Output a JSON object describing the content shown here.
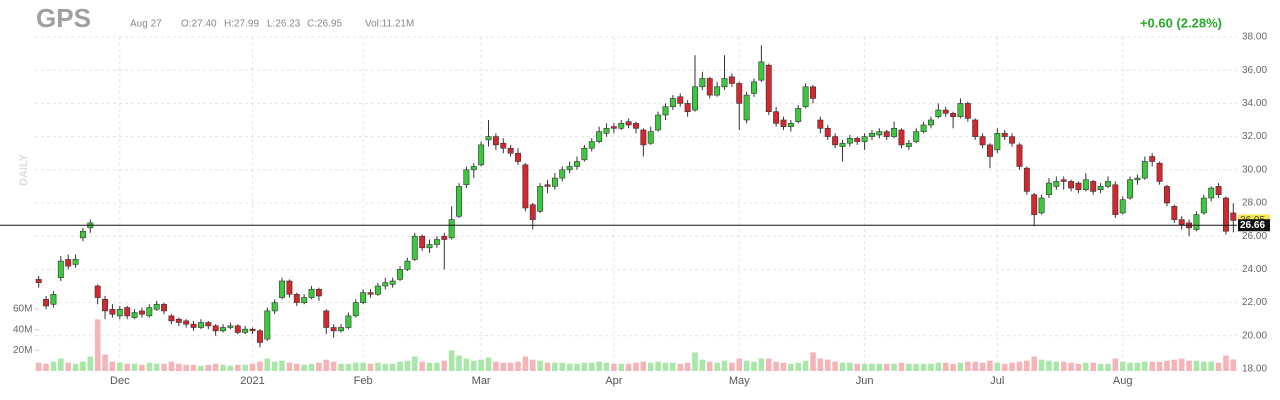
{
  "chart_data": {
    "type": "candlestick",
    "ticker": "GPS",
    "date": "Aug 27",
    "open_label": "O:27.40",
    "high_label": "H:27.99",
    "low_label": "L:26.23",
    "close_label": "C:26.95",
    "volume_label": "Vol:11.21M",
    "change": "+0.60 (2.28%)",
    "period": "DAILY",
    "up_color": "#3cc83c",
    "down_color": "#d3282f",
    "volume_up_color": "#a9e6a9",
    "volume_down_color": "#f5b5b8",
    "ylim": [
      18,
      38
    ],
    "yticks": [
      {
        "value": 18,
        "label": "18.00"
      },
      {
        "value": 20,
        "label": "20.00"
      },
      {
        "value": 22,
        "label": "22.00"
      },
      {
        "value": 24,
        "label": "24.00"
      },
      {
        "value": 26,
        "label": "26.00"
      },
      {
        "value": 28,
        "label": "28.00"
      },
      {
        "value": 30,
        "label": "30.00"
      },
      {
        "value": 32,
        "label": "32.00"
      },
      {
        "value": 34,
        "label": "34.00"
      },
      {
        "value": 36,
        "label": "36.00"
      },
      {
        "value": 38,
        "label": "38.00"
      }
    ],
    "vlim": [
      0,
      60
    ],
    "vticks": [
      {
        "value": 20,
        "label": "20M"
      },
      {
        "value": 40,
        "label": "40M"
      },
      {
        "value": 60,
        "label": "60M"
      }
    ],
    "xticks": [
      {
        "value": 11,
        "label": "Dec"
      },
      {
        "value": 29,
        "label": "2021"
      },
      {
        "value": 44,
        "label": "Feb"
      },
      {
        "value": 60,
        "label": "Mar"
      },
      {
        "value": 78,
        "label": "Apr"
      },
      {
        "value": 95,
        "label": "May"
      },
      {
        "value": 112,
        "label": "Jun"
      },
      {
        "value": 130,
        "label": "Jul"
      },
      {
        "value": 147,
        "label": "Aug"
      }
    ],
    "price_line": {
      "value": 26.66,
      "label": "26.66"
    },
    "last_price": {
      "value": 26.95,
      "label": "26.95"
    },
    "grid": true,
    "candles": [
      [
        23.4,
        23.6,
        22.9,
        23.2
      ],
      [
        22.2,
        22.4,
        21.6,
        21.8
      ],
      [
        21.9,
        22.7,
        21.7,
        22.5
      ],
      [
        23.5,
        24.8,
        23.3,
        24.5
      ],
      [
        24.6,
        24.9,
        24.0,
        24.2
      ],
      [
        24.3,
        24.9,
        24.1,
        24.6
      ],
      [
        25.9,
        26.5,
        25.7,
        26.3
      ],
      [
        26.5,
        27.0,
        26.2,
        26.8
      ],
      [
        23.0,
        23.1,
        21.9,
        22.3
      ],
      [
        22.2,
        22.4,
        21.0,
        21.5
      ],
      [
        21.6,
        21.9,
        21.1,
        21.3
      ],
      [
        21.2,
        21.8,
        21.0,
        21.6
      ],
      [
        21.7,
        21.8,
        21.0,
        21.2
      ],
      [
        21.1,
        21.6,
        21.0,
        21.4
      ],
      [
        21.5,
        21.7,
        21.1,
        21.3
      ],
      [
        21.2,
        21.9,
        21.1,
        21.7
      ],
      [
        21.6,
        22.1,
        21.5,
        21.9
      ],
      [
        21.9,
        22.0,
        21.3,
        21.5
      ],
      [
        21.2,
        21.3,
        20.7,
        20.9
      ],
      [
        21.0,
        21.1,
        20.6,
        20.8
      ],
      [
        20.9,
        21.0,
        20.5,
        20.7
      ],
      [
        20.7,
        20.9,
        20.3,
        20.5
      ],
      [
        20.5,
        21.0,
        20.4,
        20.8
      ],
      [
        20.8,
        20.9,
        20.4,
        20.6
      ],
      [
        20.6,
        20.7,
        20.0,
        20.3
      ],
      [
        20.3,
        20.7,
        20.2,
        20.5
      ],
      [
        20.5,
        20.8,
        20.4,
        20.6
      ],
      [
        20.6,
        20.7,
        20.1,
        20.2
      ],
      [
        20.2,
        20.6,
        20.1,
        20.4
      ],
      [
        20.4,
        20.5,
        20.1,
        20.3
      ],
      [
        20.3,
        20.4,
        19.3,
        19.6
      ],
      [
        19.8,
        21.7,
        19.7,
        21.5
      ],
      [
        21.5,
        22.2,
        21.3,
        22.0
      ],
      [
        22.3,
        23.5,
        22.2,
        23.3
      ],
      [
        23.3,
        23.4,
        22.3,
        22.5
      ],
      [
        22.5,
        22.6,
        21.8,
        22.0
      ],
      [
        22.0,
        22.5,
        21.9,
        22.3
      ],
      [
        22.3,
        23.0,
        22.2,
        22.8
      ],
      [
        22.8,
        22.9,
        22.1,
        22.4
      ],
      [
        21.5,
        21.6,
        20.1,
        20.5
      ],
      [
        20.5,
        20.7,
        19.9,
        20.3
      ],
      [
        20.3,
        20.7,
        20.2,
        20.5
      ],
      [
        20.5,
        21.4,
        20.4,
        21.2
      ],
      [
        21.2,
        22.2,
        21.1,
        22.0
      ],
      [
        22.0,
        22.8,
        21.9,
        22.6
      ],
      [
        22.6,
        22.8,
        22.3,
        22.5
      ],
      [
        22.5,
        23.2,
        22.4,
        23.0
      ],
      [
        23.0,
        23.5,
        22.8,
        23.2
      ],
      [
        23.1,
        23.5,
        22.9,
        23.3
      ],
      [
        23.4,
        24.2,
        23.3,
        24.0
      ],
      [
        24.0,
        24.7,
        23.9,
        24.5
      ],
      [
        24.6,
        26.2,
        24.5,
        26.0
      ],
      [
        26.0,
        26.1,
        25.1,
        25.3
      ],
      [
        25.3,
        25.8,
        25.0,
        25.5
      ],
      [
        25.5,
        26.0,
        25.3,
        25.8
      ],
      [
        26.0,
        26.2,
        24.0,
        25.8
      ],
      [
        25.9,
        27.8,
        25.8,
        27.0
      ],
      [
        27.2,
        29.2,
        27.1,
        29.0
      ],
      [
        29.1,
        30.2,
        28.9,
        30.0
      ],
      [
        30.0,
        30.4,
        29.5,
        30.2
      ],
      [
        30.3,
        31.7,
        30.2,
        31.5
      ],
      [
        31.8,
        33.0,
        31.4,
        32.0
      ],
      [
        32.0,
        32.2,
        31.2,
        31.5
      ],
      [
        31.6,
        31.9,
        31.0,
        31.3
      ],
      [
        31.3,
        31.5,
        30.8,
        31.0
      ],
      [
        31.0,
        31.3,
        30.3,
        30.5
      ],
      [
        30.3,
        30.4,
        27.5,
        27.7
      ],
      [
        27.9,
        28.0,
        26.4,
        27.0
      ],
      [
        27.5,
        29.2,
        27.4,
        29.0
      ],
      [
        29.1,
        29.4,
        28.6,
        29.0
      ],
      [
        29.0,
        29.8,
        28.8,
        29.5
      ],
      [
        29.5,
        30.2,
        29.3,
        30.0
      ],
      [
        30.0,
        30.5,
        29.8,
        30.2
      ],
      [
        30.2,
        30.8,
        30.0,
        30.5
      ],
      [
        30.6,
        31.5,
        30.5,
        31.3
      ],
      [
        31.3,
        31.9,
        31.1,
        31.7
      ],
      [
        31.7,
        32.6,
        31.6,
        32.3
      ],
      [
        32.2,
        32.8,
        32.0,
        32.5
      ],
      [
        32.6,
        32.8,
        32.2,
        32.5
      ],
      [
        32.5,
        33.0,
        32.4,
        32.8
      ],
      [
        32.9,
        33.1,
        32.5,
        32.7
      ],
      [
        32.8,
        32.9,
        32.2,
        32.5
      ],
      [
        32.4,
        32.5,
        30.8,
        31.5
      ],
      [
        31.6,
        32.6,
        31.5,
        32.3
      ],
      [
        32.4,
        33.5,
        32.3,
        33.3
      ],
      [
        33.3,
        34.0,
        33.0,
        33.8
      ],
      [
        33.8,
        34.5,
        33.6,
        34.3
      ],
      [
        34.4,
        34.6,
        33.8,
        34.0
      ],
      [
        34.0,
        34.2,
        33.2,
        33.5
      ],
      [
        33.6,
        36.9,
        33.5,
        35.0
      ],
      [
        35.0,
        35.9,
        34.8,
        35.5
      ],
      [
        35.5,
        35.6,
        34.3,
        34.5
      ],
      [
        34.5,
        35.3,
        34.4,
        35.0
      ],
      [
        35.0,
        36.9,
        34.8,
        35.5
      ],
      [
        35.6,
        35.8,
        35.0,
        35.2
      ],
      [
        35.2,
        35.3,
        32.4,
        34.0
      ],
      [
        33.0,
        34.7,
        32.8,
        34.5
      ],
      [
        34.6,
        35.5,
        34.4,
        35.3
      ],
      [
        35.4,
        37.5,
        35.3,
        36.5
      ],
      [
        36.3,
        36.4,
        33.3,
        33.5
      ],
      [
        33.5,
        33.8,
        32.6,
        32.8
      ],
      [
        33.0,
        33.2,
        32.4,
        32.6
      ],
      [
        32.6,
        33.0,
        32.3,
        32.8
      ],
      [
        32.9,
        33.9,
        32.8,
        33.7
      ],
      [
        33.8,
        35.2,
        33.7,
        35.0
      ],
      [
        35.0,
        35.1,
        34.0,
        34.3
      ],
      [
        33.0,
        33.2,
        32.2,
        32.5
      ],
      [
        32.5,
        32.7,
        31.8,
        32.0
      ],
      [
        32.0,
        32.2,
        31.3,
        31.5
      ],
      [
        31.4,
        31.8,
        30.5,
        31.6
      ],
      [
        31.6,
        32.1,
        31.4,
        31.9
      ],
      [
        31.9,
        32.0,
        31.5,
        31.7
      ],
      [
        31.7,
        32.2,
        31.2,
        32.0
      ],
      [
        32.0,
        32.4,
        31.8,
        32.2
      ],
      [
        32.1,
        32.5,
        31.9,
        32.3
      ],
      [
        32.3,
        32.4,
        31.8,
        32.0
      ],
      [
        32.0,
        32.9,
        31.9,
        32.5
      ],
      [
        32.4,
        32.5,
        31.3,
        31.5
      ],
      [
        31.4,
        31.8,
        31.2,
        31.6
      ],
      [
        31.7,
        32.5,
        31.6,
        32.3
      ],
      [
        32.3,
        32.9,
        32.2,
        32.7
      ],
      [
        32.7,
        33.2,
        32.5,
        33.0
      ],
      [
        33.2,
        34.0,
        33.1,
        33.6
      ],
      [
        33.6,
        33.8,
        33.2,
        33.4
      ],
      [
        33.4,
        33.5,
        32.5,
        33.2
      ],
      [
        33.2,
        34.3,
        33.1,
        34.0
      ],
      [
        34.0,
        34.1,
        32.9,
        33.1
      ],
      [
        33.0,
        33.1,
        31.8,
        32.0
      ],
      [
        32.0,
        32.2,
        31.3,
        31.5
      ],
      [
        31.5,
        31.6,
        30.1,
        30.8
      ],
      [
        31.2,
        32.5,
        31.0,
        32.2
      ],
      [
        32.2,
        32.4,
        31.8,
        32.0
      ],
      [
        32.0,
        32.2,
        31.4,
        31.6
      ],
      [
        31.5,
        31.6,
        30.0,
        30.2
      ],
      [
        30.1,
        30.2,
        28.5,
        28.7
      ],
      [
        28.5,
        28.6,
        26.6,
        27.3
      ],
      [
        27.4,
        28.5,
        27.3,
        28.3
      ],
      [
        28.5,
        29.5,
        28.3,
        29.2
      ],
      [
        29.0,
        29.6,
        28.8,
        29.3
      ],
      [
        29.4,
        29.6,
        28.8,
        29.3
      ],
      [
        29.3,
        29.4,
        28.7,
        28.9
      ],
      [
        29.2,
        29.3,
        28.6,
        28.8
      ],
      [
        28.8,
        29.8,
        28.7,
        29.4
      ],
      [
        29.3,
        29.4,
        28.5,
        28.7
      ],
      [
        28.8,
        29.2,
        28.6,
        29.0
      ],
      [
        29.0,
        29.6,
        28.9,
        29.3
      ],
      [
        29.1,
        29.3,
        27.1,
        27.3
      ],
      [
        27.4,
        28.4,
        27.3,
        28.2
      ],
      [
        28.3,
        29.6,
        28.2,
        29.4
      ],
      [
        29.4,
        29.7,
        29.1,
        29.5
      ],
      [
        29.5,
        30.8,
        29.4,
        30.5
      ],
      [
        30.8,
        31.0,
        30.2,
        30.5
      ],
      [
        30.4,
        30.5,
        29.1,
        29.3
      ],
      [
        29.0,
        29.1,
        27.8,
        28.0
      ],
      [
        27.8,
        27.9,
        26.8,
        27.0
      ],
      [
        27.0,
        27.2,
        26.4,
        26.7
      ],
      [
        26.8,
        27.0,
        26.0,
        26.5
      ],
      [
        26.4,
        27.5,
        26.3,
        27.3
      ],
      [
        27.4,
        28.5,
        27.3,
        28.3
      ],
      [
        28.3,
        29.0,
        28.1,
        28.9
      ],
      [
        29.0,
        29.2,
        28.3,
        28.5
      ],
      [
        28.3,
        28.4,
        26.1,
        26.3
      ],
      [
        27.4,
        27.99,
        26.23,
        26.95
      ]
    ],
    "volume": [
      8,
      7,
      9,
      12,
      8,
      7,
      9,
      14,
      50,
      16,
      9,
      8,
      7,
      7,
      6,
      8,
      7,
      7,
      9,
      7,
      6,
      6,
      5,
      6,
      7,
      6,
      5,
      6,
      6,
      7,
      9,
      12,
      9,
      10,
      8,
      7,
      6,
      7,
      8,
      11,
      9,
      7,
      7,
      8,
      8,
      7,
      8,
      7,
      7,
      9,
      10,
      14,
      9,
      8,
      8,
      10,
      20,
      15,
      12,
      10,
      11,
      13,
      9,
      8,
      8,
      9,
      14,
      11,
      10,
      8,
      8,
      8,
      7,
      7,
      8,
      8,
      9,
      8,
      7,
      7,
      7,
      8,
      9,
      8,
      9,
      8,
      8,
      7,
      8,
      18,
      11,
      9,
      8,
      10,
      8,
      12,
      10,
      9,
      12,
      12,
      9,
      8,
      7,
      8,
      10,
      18,
      12,
      11,
      9,
      8,
      8,
      7,
      7,
      7,
      7,
      7,
      7,
      8,
      7,
      7,
      7,
      7,
      8,
      8,
      7,
      8,
      9,
      9,
      8,
      10,
      8,
      7,
      8,
      9,
      10,
      14,
      11,
      10,
      9,
      9,
      8,
      7,
      8,
      8,
      7,
      7,
      12,
      9,
      8,
      8,
      9,
      9,
      9,
      10,
      11,
      12,
      10,
      10,
      9,
      9,
      8,
      15,
      11.21
    ]
  }
}
